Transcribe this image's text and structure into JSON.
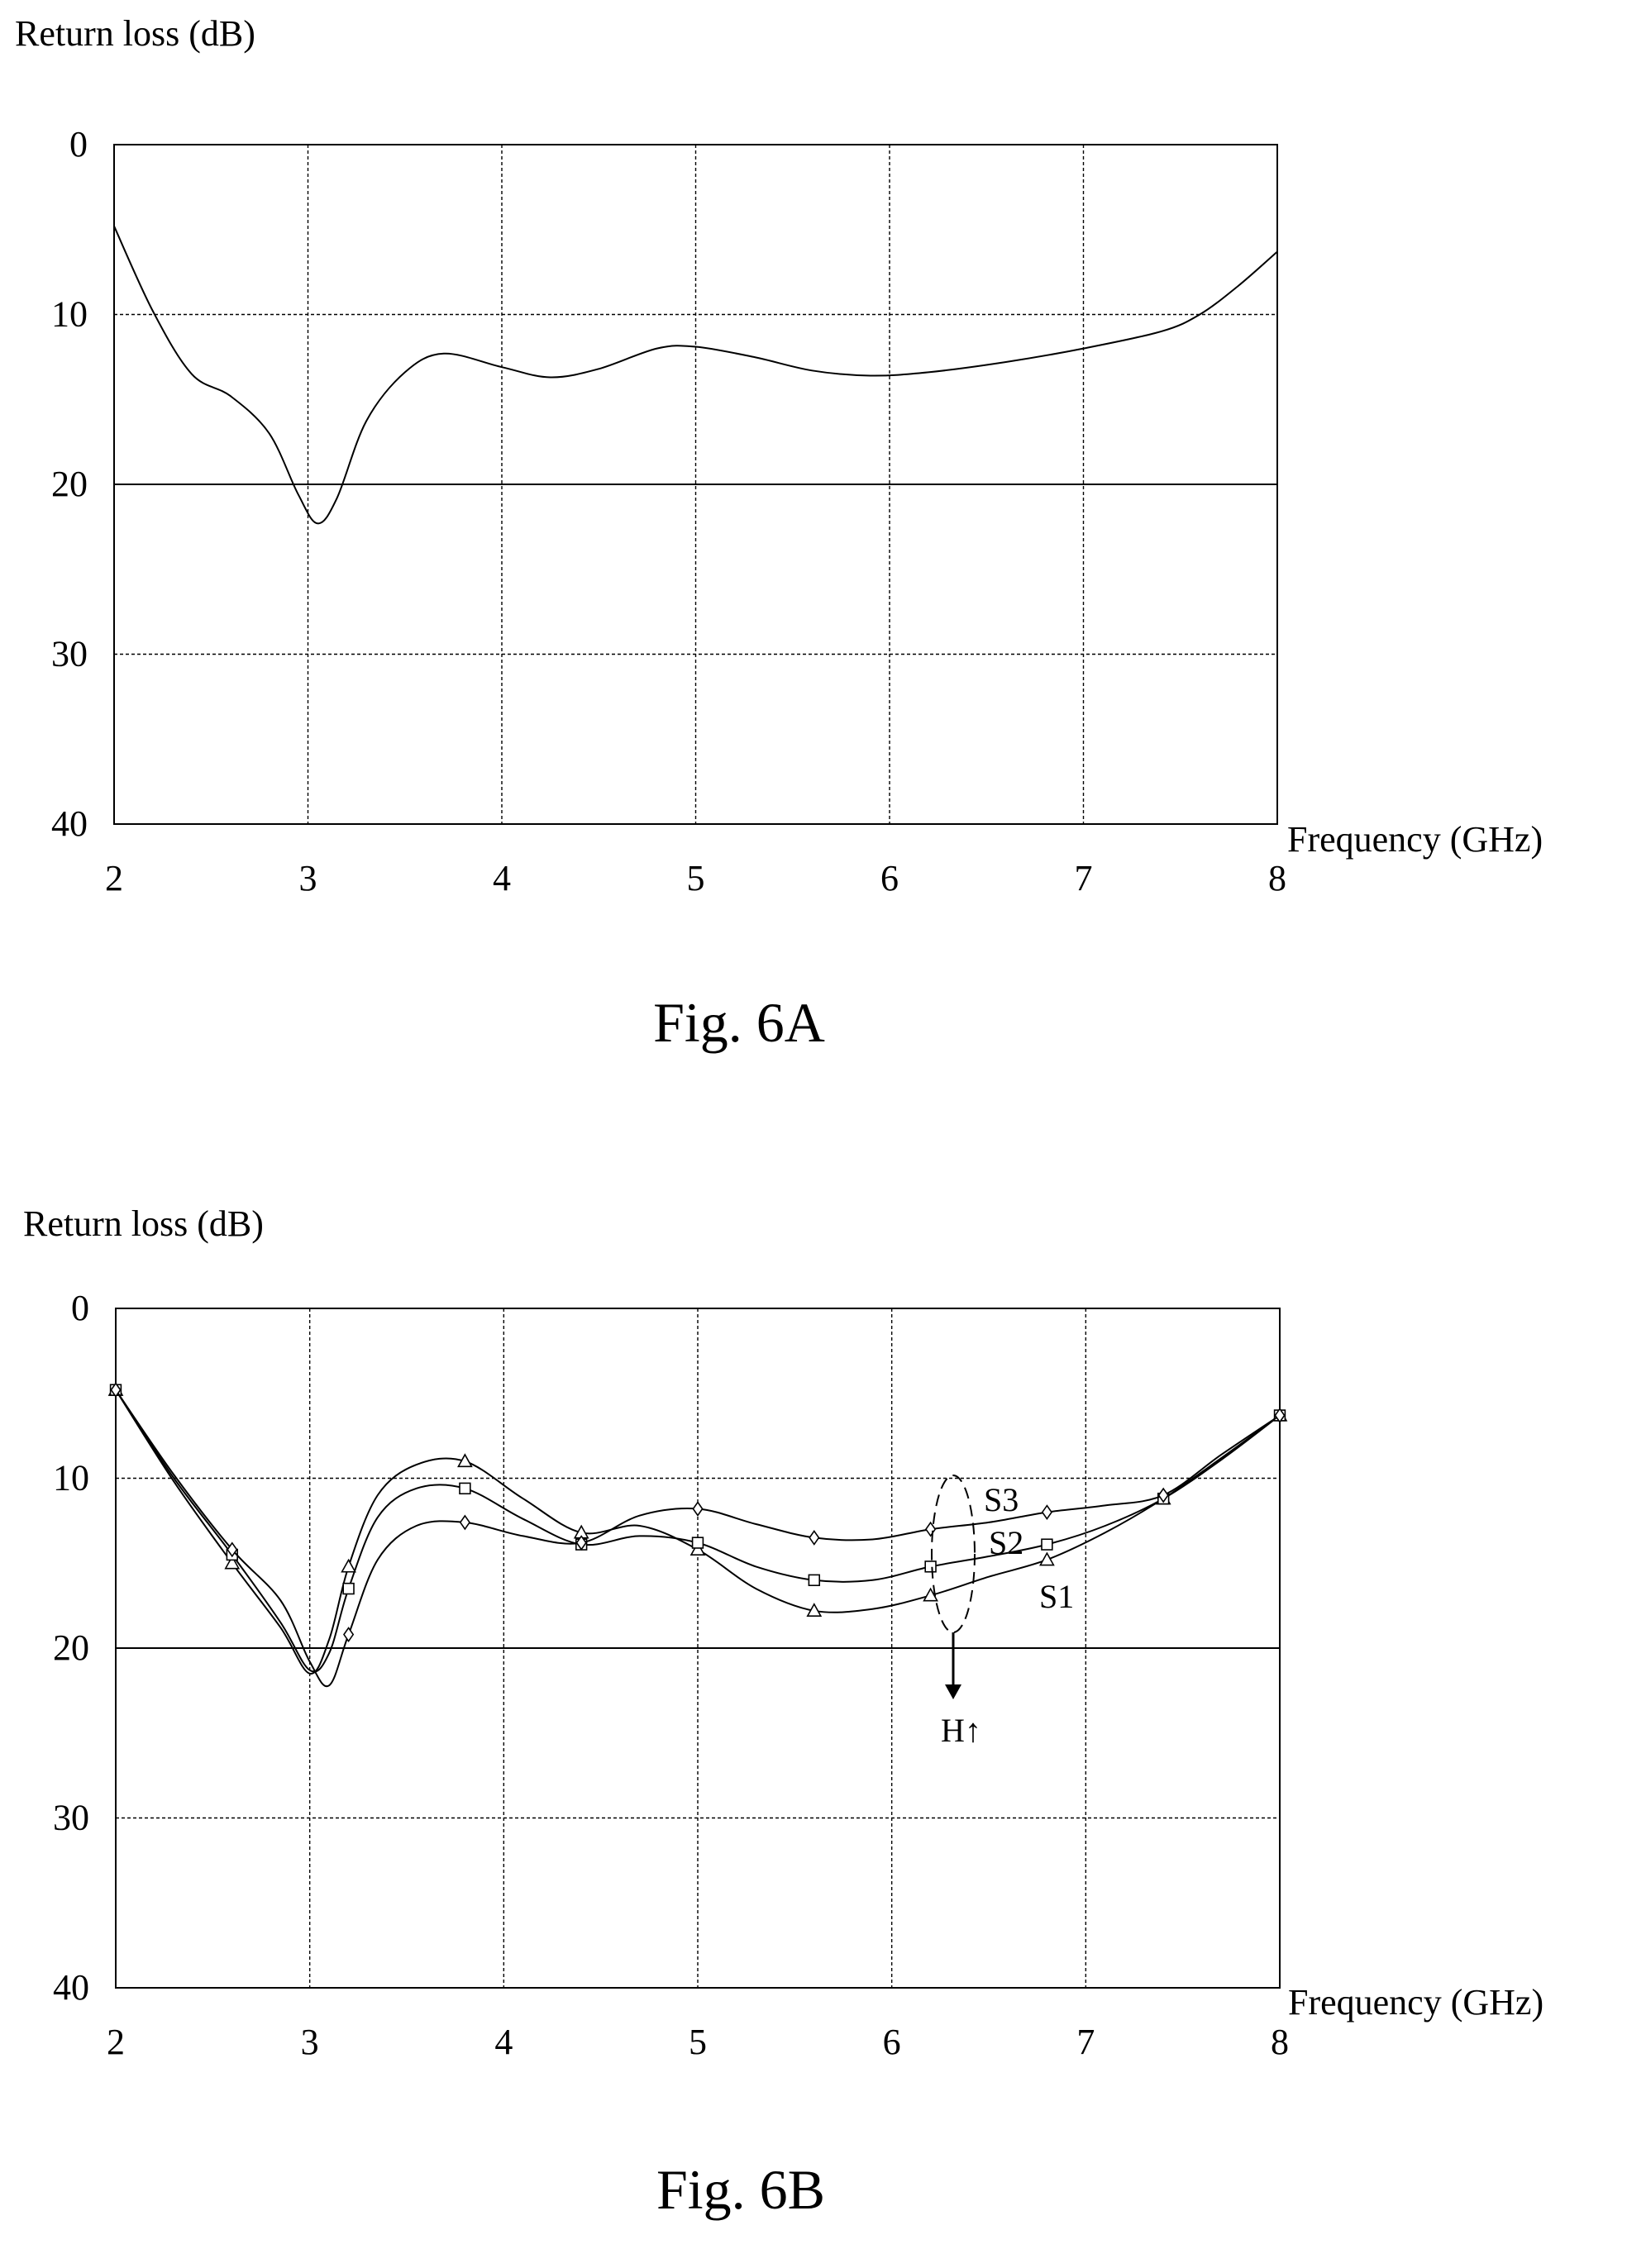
{
  "chart_data": [
    {
      "type": "line",
      "caption": "Fig. 6A",
      "ylabel": "Return loss (dB)",
      "xlabel": "Frequency (GHz)",
      "xlim": [
        2,
        8
      ],
      "ylim": [
        0,
        40
      ],
      "y_inverted": true,
      "x_ticks": [
        "2",
        "3",
        "4",
        "5",
        "6",
        "7",
        "8"
      ],
      "y_ticks": [
        "0",
        "10",
        "20",
        "30",
        "40"
      ],
      "grid": "dashed minor / solid at 20",
      "series": [
        {
          "x": [
            2.0,
            2.2,
            2.4,
            2.6,
            2.8,
            2.95,
            3.05,
            3.15,
            3.3,
            3.5,
            3.7,
            4.0,
            4.25,
            4.5,
            4.8,
            5.0,
            5.3,
            5.6,
            5.9,
            6.2,
            6.6,
            7.0,
            7.4,
            7.6,
            7.8,
            8.0
          ],
          "y": [
            4.8,
            9.8,
            13.5,
            14.8,
            17.0,
            20.6,
            22.3,
            20.8,
            16.3,
            13.4,
            12.3,
            13.1,
            13.7,
            13.2,
            12.0,
            11.9,
            12.5,
            13.3,
            13.6,
            13.4,
            12.8,
            12.0,
            11.0,
            10.0,
            8.3,
            6.3
          ]
        }
      ]
    },
    {
      "type": "line",
      "caption": "Fig. 6B",
      "ylabel": "Return loss (dB)",
      "xlabel": "Frequency (GHz)",
      "xlim": [
        2,
        8
      ],
      "ylim": [
        0,
        40
      ],
      "y_inverted": true,
      "x_ticks": [
        "2",
        "3",
        "4",
        "5",
        "6",
        "7",
        "8"
      ],
      "y_ticks": [
        "0",
        "10",
        "20",
        "30",
        "40"
      ],
      "annotation": "H↑",
      "series": [
        {
          "name": "S1",
          "marker": "triangle",
          "x": [
            2.0,
            2.3,
            2.6,
            2.85,
            3.0,
            3.1,
            3.2,
            3.35,
            3.55,
            3.8,
            4.1,
            4.4,
            4.7,
            5.0,
            5.3,
            5.6,
            5.9,
            6.2,
            6.5,
            6.8,
            7.1,
            7.4,
            7.7,
            8.0
          ],
          "y": [
            4.8,
            10.2,
            15.0,
            18.8,
            21.5,
            19.5,
            15.2,
            11.0,
            9.2,
            9.0,
            11.2,
            13.2,
            12.8,
            14.2,
            16.5,
            17.8,
            17.7,
            16.9,
            15.8,
            14.8,
            13.2,
            11.2,
            8.8,
            6.3
          ],
          "markers_x": [
            2.0,
            2.6,
            3.2,
            3.8,
            4.4,
            5.0,
            5.6,
            6.2,
            6.8,
            7.4,
            8.0
          ],
          "markers_y": [
            4.8,
            15.0,
            15.2,
            9.0,
            13.2,
            14.2,
            17.8,
            16.9,
            14.8,
            11.2,
            6.3
          ]
        },
        {
          "name": "S2",
          "marker": "square",
          "x": [
            2.0,
            2.3,
            2.6,
            2.85,
            3.0,
            3.1,
            3.2,
            3.35,
            3.55,
            3.8,
            4.1,
            4.4,
            4.7,
            5.0,
            5.3,
            5.6,
            5.9,
            6.2,
            6.5,
            6.8,
            7.1,
            7.4,
            7.7,
            8.0
          ],
          "y": [
            4.8,
            10.0,
            14.5,
            18.5,
            21.3,
            20.3,
            16.5,
            12.3,
            10.6,
            10.6,
            12.4,
            13.9,
            13.4,
            13.8,
            15.2,
            16.0,
            16.0,
            15.2,
            14.6,
            13.9,
            12.8,
            11.2,
            8.9,
            6.3
          ],
          "markers_x": [
            2.0,
            2.6,
            3.2,
            3.8,
            4.4,
            5.0,
            5.6,
            6.2,
            6.8,
            7.4,
            8.0
          ],
          "markers_y": [
            4.8,
            14.5,
            16.5,
            10.6,
            13.9,
            13.8,
            16.0,
            15.2,
            13.9,
            11.2,
            6.3
          ]
        },
        {
          "name": "S3",
          "marker": "diamond",
          "x": [
            2.0,
            2.3,
            2.6,
            2.85,
            3.0,
            3.1,
            3.2,
            3.35,
            3.55,
            3.8,
            4.1,
            4.4,
            4.7,
            5.0,
            5.3,
            5.6,
            5.9,
            6.2,
            6.5,
            6.8,
            7.1,
            7.4,
            7.7,
            8.0
          ],
          "y": [
            4.8,
            9.8,
            14.2,
            17.2,
            20.8,
            22.2,
            19.2,
            14.8,
            12.8,
            12.6,
            13.4,
            13.8,
            12.2,
            11.8,
            12.7,
            13.5,
            13.6,
            13.0,
            12.6,
            12.0,
            11.6,
            11.0,
            8.6,
            6.3
          ],
          "markers_x": [
            2.0,
            2.6,
            3.2,
            3.8,
            4.4,
            5.0,
            5.6,
            6.2,
            6.8,
            7.4,
            8.0
          ],
          "markers_y": [
            4.8,
            14.2,
            19.2,
            12.6,
            13.8,
            11.8,
            13.5,
            13.0,
            12.0,
            11.0,
            6.3
          ]
        }
      ]
    }
  ]
}
